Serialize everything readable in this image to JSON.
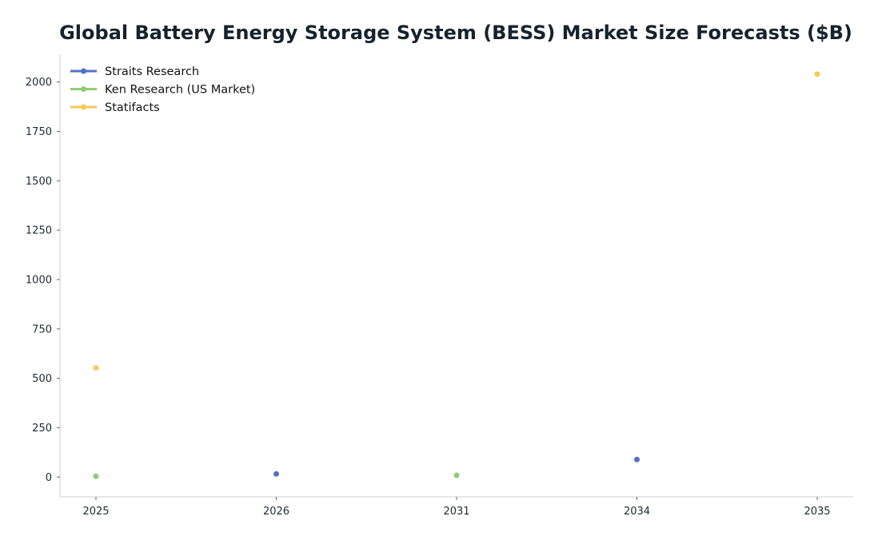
{
  "chart_data": {
    "type": "scatter",
    "title": "Global Battery Energy Storage System (BESS) Market Size Forecasts ($B)",
    "xlabel": "",
    "ylabel": "",
    "categories": [
      "2025",
      "2026",
      "2031",
      "2034",
      "2035"
    ],
    "ylim": [
      -100,
      2140
    ],
    "yticks": [
      0,
      250,
      500,
      750,
      1000,
      1250,
      1500,
      1750,
      2000
    ],
    "grid": false,
    "legend_position": "top-left",
    "series": [
      {
        "name": "Straits Research",
        "color": "#5470c6",
        "points": [
          {
            "x": "2026",
            "y": 16
          },
          {
            "x": "2034",
            "y": 89
          }
        ]
      },
      {
        "name": "Ken Research (US Market)",
        "color": "#91cc75",
        "points": [
          {
            "x": "2025",
            "y": 4
          },
          {
            "x": "2031",
            "y": 9
          }
        ]
      },
      {
        "name": "Statifacts",
        "color": "#fac858",
        "points": [
          {
            "x": "2025",
            "y": 553
          },
          {
            "x": "2035",
            "y": 2040
          }
        ]
      }
    ]
  }
}
